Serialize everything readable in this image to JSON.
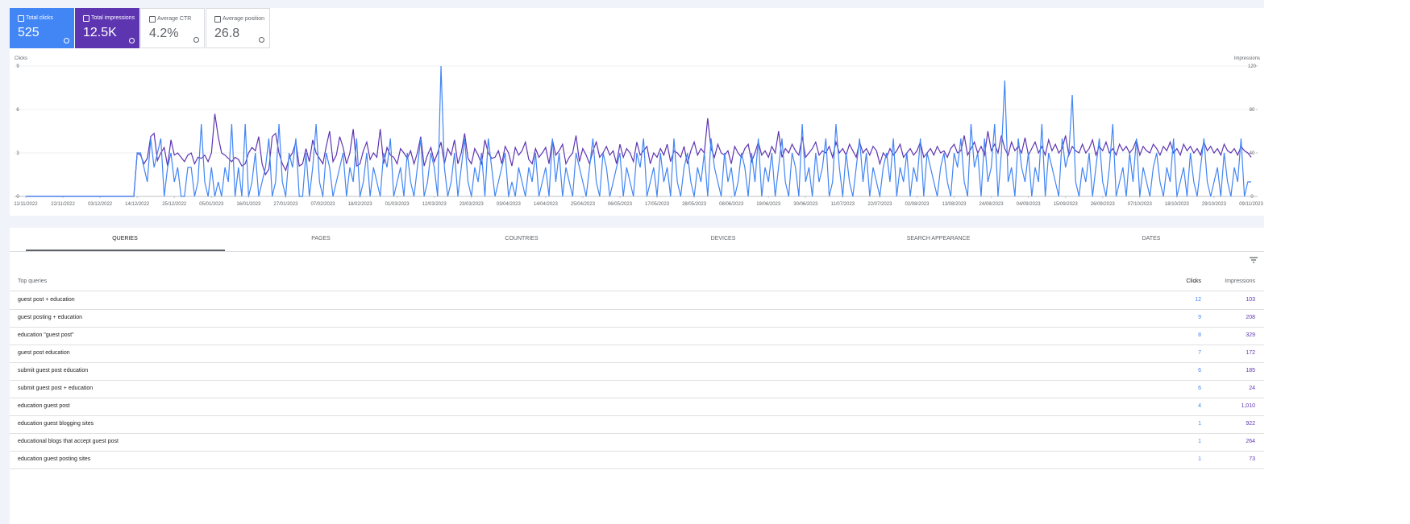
{
  "metrics": [
    {
      "label": "Total clicks",
      "value": "525"
    },
    {
      "label": "Total impressions",
      "value": "12.5K"
    },
    {
      "label": "Average CTR",
      "value": "4.2%"
    },
    {
      "label": "Average position",
      "value": "26.8"
    }
  ],
  "chart_data": {
    "type": "line",
    "y_label": "Clicks",
    "y2_label": "Impressions",
    "xlim": [
      0,
      363
    ],
    "xticks": [
      {
        "value": 0,
        "label": "11/11/2022"
      },
      {
        "value": 11,
        "label": "22/11/2022"
      },
      {
        "value": 22,
        "label": "03/12/2022"
      },
      {
        "value": 33,
        "label": "14/12/2022"
      },
      {
        "value": 44,
        "label": "25/12/2022"
      },
      {
        "value": 55,
        "label": "05/01/2023"
      },
      {
        "value": 66,
        "label": "16/01/2023"
      },
      {
        "value": 77,
        "label": "27/01/2023"
      },
      {
        "value": 88,
        "label": "07/02/2023"
      },
      {
        "value": 99,
        "label": "18/02/2023"
      },
      {
        "value": 110,
        "label": "01/03/2023"
      },
      {
        "value": 121,
        "label": "12/03/2023"
      },
      {
        "value": 132,
        "label": "23/03/2023"
      },
      {
        "value": 143,
        "label": "03/04/2023"
      },
      {
        "value": 154,
        "label": "14/04/2023"
      },
      {
        "value": 165,
        "label": "25/04/2023"
      },
      {
        "value": 176,
        "label": "06/05/2023"
      },
      {
        "value": 187,
        "label": "17/05/2023"
      },
      {
        "value": 198,
        "label": "28/05/2023"
      },
      {
        "value": 209,
        "label": "08/06/2023"
      },
      {
        "value": 220,
        "label": "19/06/2023"
      },
      {
        "value": 231,
        "label": "30/06/2023"
      },
      {
        "value": 242,
        "label": "11/07/2023"
      },
      {
        "value": 253,
        "label": "22/07/2023"
      },
      {
        "value": 264,
        "label": "02/08/2023"
      },
      {
        "value": 275,
        "label": "13/08/2023"
      },
      {
        "value": 286,
        "label": "24/08/2023"
      },
      {
        "value": 297,
        "label": "04/09/2023"
      },
      {
        "value": 308,
        "label": "15/09/2023"
      },
      {
        "value": 319,
        "label": "26/09/2023"
      },
      {
        "value": 330,
        "label": "07/10/2023"
      },
      {
        "value": 341,
        "label": "18/10/2023"
      },
      {
        "value": 352,
        "label": "29/10/2023"
      },
      {
        "value": 363,
        "label": "09/11/2023"
      }
    ],
    "ylim": [
      0,
      9
    ],
    "yticks": [
      0,
      3,
      6,
      9
    ],
    "y2lim": [
      0,
      120
    ],
    "y2ticks": [
      0,
      40,
      80,
      120
    ],
    "grid": true,
    "series": [
      {
        "name": "Total clicks",
        "color": "#4285f4",
        "values": [
          0,
          0,
          0,
          0,
          0,
          0,
          0,
          0,
          0,
          0,
          0,
          0,
          0,
          0,
          0,
          0,
          0,
          0,
          0,
          0,
          0,
          0,
          0,
          0,
          0,
          0,
          0,
          0,
          0,
          0,
          0,
          0,
          0,
          3,
          3,
          2,
          1,
          4,
          2,
          3,
          4,
          0,
          2,
          3,
          1,
          2,
          0,
          0,
          2,
          2,
          0,
          1,
          5,
          1,
          0,
          2,
          0,
          1,
          0,
          2,
          1,
          5,
          0,
          2,
          0,
          5,
          0,
          1,
          3,
          0,
          1,
          2,
          4,
          0,
          1,
          5,
          1,
          0,
          3,
          2,
          4,
          0,
          0,
          3,
          0,
          2,
          5,
          1,
          0,
          3,
          2,
          0,
          1,
          2,
          3,
          0,
          2,
          1,
          4,
          0,
          1,
          3,
          0,
          2,
          1,
          0,
          3,
          2,
          4,
          0,
          1,
          2,
          0,
          3,
          1,
          0,
          2,
          4,
          0,
          1,
          3,
          2,
          0,
          9,
          2,
          0,
          1,
          3,
          0,
          2,
          4,
          1,
          0,
          2,
          1,
          3,
          0,
          4,
          2,
          0,
          1,
          2,
          3,
          0,
          1,
          0,
          2,
          1,
          0,
          2,
          1,
          3,
          0,
          1,
          2,
          0,
          4,
          1,
          3,
          0,
          2,
          1,
          0,
          3,
          2,
          1,
          0,
          2,
          4,
          1,
          0,
          3,
          2,
          0,
          1,
          2,
          3,
          0,
          2,
          1,
          0,
          3,
          2,
          4,
          0,
          1,
          2,
          0,
          3,
          1,
          2,
          0,
          4,
          1,
          0,
          2,
          3,
          1,
          0,
          2,
          1,
          3,
          0,
          4,
          2,
          1,
          0,
          3,
          1,
          2,
          0,
          1,
          3,
          2,
          0,
          3,
          1,
          4,
          0,
          2,
          1,
          3,
          0,
          2,
          4,
          1,
          0,
          3,
          2,
          0,
          5,
          1,
          2,
          0,
          3,
          1,
          2,
          4,
          0,
          1,
          5,
          2,
          0,
          3,
          1,
          0,
          2,
          4,
          1,
          3,
          0,
          2,
          1,
          0,
          2,
          3,
          1,
          4,
          0,
          2,
          1,
          3,
          0,
          2,
          1,
          4,
          0,
          3,
          2,
          1,
          0,
          2,
          3,
          1,
          0,
          3,
          2,
          4,
          1,
          0,
          5,
          2,
          3,
          0,
          4,
          1,
          2,
          5,
          0,
          3,
          8,
          1,
          2,
          0,
          4,
          2,
          1,
          3,
          0,
          2,
          1,
          5,
          0,
          3,
          2,
          1,
          0,
          4,
          2,
          3,
          7,
          1,
          0,
          2,
          1,
          3,
          0,
          2,
          4,
          1,
          0,
          2,
          5,
          0,
          1,
          2,
          0,
          3,
          1,
          4,
          0,
          2,
          1,
          0,
          2,
          3,
          1,
          0,
          2,
          1,
          4,
          0,
          1,
          2,
          0,
          3,
          1,
          0,
          2,
          4,
          1,
          0,
          1,
          2,
          0,
          3,
          1,
          0,
          2,
          1,
          4,
          0,
          1,
          1
        ]
      },
      {
        "name": "Total impressions",
        "color": "#5e35b1",
        "axis": "y2",
        "values": [
          0,
          0,
          0,
          0,
          0,
          0,
          0,
          0,
          0,
          0,
          0,
          0,
          0,
          0,
          0,
          0,
          0,
          0,
          0,
          0,
          0,
          0,
          0,
          0,
          0,
          0,
          0,
          0,
          0,
          0,
          0,
          0,
          0,
          40,
          38,
          30,
          35,
          55,
          58,
          33,
          40,
          45,
          28,
          52,
          38,
          40,
          36,
          32,
          38,
          40,
          30,
          36,
          35,
          38,
          32,
          40,
          76,
          55,
          40,
          38,
          35,
          32,
          36,
          34,
          28,
          30,
          40,
          45,
          42,
          55,
          30,
          20,
          25,
          55,
          58,
          40,
          30,
          24,
          35,
          40,
          50,
          28,
          30,
          44,
          32,
          52,
          40,
          35,
          30,
          46,
          60,
          32,
          38,
          55,
          45,
          30,
          40,
          62,
          28,
          30,
          42,
          50,
          34,
          40,
          36,
          62,
          30,
          45,
          38,
          36,
          30,
          44,
          40,
          35,
          42,
          30,
          40,
          55,
          28,
          38,
          45,
          32,
          40,
          50,
          30,
          44,
          38,
          52,
          30,
          40,
          58,
          35,
          30,
          44,
          38,
          30,
          52,
          40,
          35,
          36,
          42,
          30,
          46,
          40,
          28,
          45,
          38,
          42,
          50,
          34,
          30,
          44,
          36,
          40,
          45,
          30,
          52,
          38,
          42,
          48,
          30,
          36,
          40,
          56,
          32,
          44,
          38,
          30,
          42,
          50,
          36,
          40,
          46,
          38,
          42,
          30,
          48,
          36,
          44,
          40,
          32,
          50,
          38,
          42,
          46,
          30,
          40,
          36,
          44,
          38,
          48,
          32,
          42,
          40,
          36,
          46,
          30,
          42,
          50,
          38,
          44,
          40,
          72,
          44,
          36,
          48,
          40,
          38,
          42,
          30,
          46,
          40,
          36,
          44,
          48,
          32,
          40,
          50,
          38,
          42,
          36,
          46,
          40,
          60,
          36,
          44,
          40,
          48,
          42,
          38,
          55,
          36,
          40,
          44,
          50,
          38,
          42,
          40,
          46,
          36,
          50,
          40,
          44,
          38,
          48,
          42,
          36,
          50,
          40,
          44,
          38,
          46,
          42,
          30,
          40,
          36,
          44,
          38,
          42,
          48,
          36,
          40,
          44,
          38,
          42,
          50,
          36,
          40,
          44,
          38,
          46,
          40,
          42,
          36,
          44,
          48,
          40,
          42,
          56,
          38,
          44,
          50,
          40,
          46,
          38,
          60,
          42,
          48,
          40,
          56,
          44,
          38,
          50,
          42,
          46,
          40,
          54,
          38,
          44,
          50,
          40,
          46,
          38,
          52,
          42,
          48,
          40,
          44,
          56,
          38,
          46,
          42,
          40,
          48,
          40,
          44,
          52,
          38,
          46,
          42,
          50,
          40,
          44,
          38,
          48,
          42,
          46,
          40,
          44,
          52,
          38,
          46,
          42,
          40,
          48,
          44,
          38,
          46,
          42,
          50,
          40,
          44,
          38,
          48,
          42,
          46,
          40,
          44,
          38,
          50,
          42,
          46,
          40,
          44,
          38,
          48,
          42,
          40,
          44,
          38,
          46,
          42,
          40,
          36
        ]
      }
    ]
  },
  "tabs": [
    "QUERIES",
    "PAGES",
    "COUNTRIES",
    "DEVICES",
    "SEARCH APPEARANCE",
    "DATES"
  ],
  "table": {
    "header": [
      "Top queries",
      "Clicks",
      "Impressions"
    ],
    "rows": [
      [
        "guest post + education",
        12,
        103
      ],
      [
        "guest posting + education",
        9,
        208
      ],
      [
        "education \"guest post\"",
        8,
        329
      ],
      [
        "guest post education",
        7,
        172
      ],
      [
        "submit guest post education",
        6,
        185
      ],
      [
        "submit guest post + education",
        6,
        24
      ],
      [
        "education guest post",
        4,
        "1,010"
      ],
      [
        "education guest blogging sites",
        1,
        922
      ],
      [
        "educational blogs that accept guest post",
        1,
        264
      ],
      [
        "education guest posting sites",
        1,
        73
      ]
    ]
  }
}
